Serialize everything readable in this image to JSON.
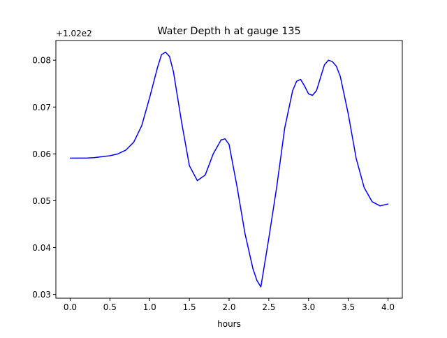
{
  "chart_data": {
    "type": "line",
    "title": "Water Depth h at gauge 135",
    "xlabel": "hours",
    "ylabel": "",
    "y_offset_label": "+1.02e2",
    "xlim": [
      -0.18,
      4.18
    ],
    "ylim": [
      0.0292,
      0.0842
    ],
    "x_ticks": [
      0.0,
      0.5,
      1.0,
      1.5,
      2.0,
      2.5,
      3.0,
      3.5,
      4.0
    ],
    "x_tick_labels": [
      "0.0",
      "0.5",
      "1.0",
      "1.5",
      "2.0",
      "2.5",
      "3.0",
      "3.5",
      "4.0"
    ],
    "y_ticks": [
      0.03,
      0.04,
      0.05,
      0.06,
      0.07,
      0.08
    ],
    "y_tick_labels": [
      "0.03",
      "0.04",
      "0.05",
      "0.06",
      "0.07",
      "0.08"
    ],
    "grid": false,
    "series": [
      {
        "color": "#0000ff",
        "x": [
          0.0,
          0.1,
          0.2,
          0.3,
          0.4,
          0.5,
          0.6,
          0.7,
          0.8,
          0.9,
          1.0,
          1.1,
          1.15,
          1.2,
          1.25,
          1.3,
          1.4,
          1.5,
          1.6,
          1.7,
          1.8,
          1.9,
          1.95,
          2.0,
          2.1,
          2.2,
          2.3,
          2.35,
          2.4,
          2.5,
          2.6,
          2.7,
          2.8,
          2.85,
          2.9,
          2.95,
          3.0,
          3.05,
          3.1,
          3.2,
          3.25,
          3.3,
          3.35,
          3.4,
          3.5,
          3.6,
          3.7,
          3.8,
          3.9,
          4.0
        ],
        "y": [
          0.0591,
          0.0591,
          0.0591,
          0.0592,
          0.0594,
          0.0596,
          0.06,
          0.0608,
          0.0625,
          0.066,
          0.072,
          0.0785,
          0.0812,
          0.0817,
          0.0808,
          0.0775,
          0.067,
          0.0575,
          0.0543,
          0.0555,
          0.06,
          0.063,
          0.0632,
          0.062,
          0.053,
          0.043,
          0.0355,
          0.033,
          0.0316,
          0.042,
          0.053,
          0.0655,
          0.0735,
          0.0755,
          0.0759,
          0.0745,
          0.0728,
          0.0725,
          0.0735,
          0.079,
          0.08,
          0.0797,
          0.0787,
          0.0765,
          0.0685,
          0.059,
          0.0528,
          0.0498,
          0.0489,
          0.0493
        ]
      }
    ]
  }
}
